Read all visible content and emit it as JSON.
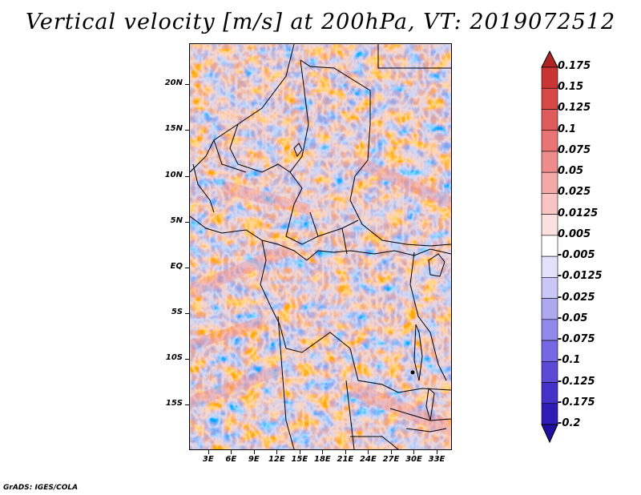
{
  "title": "Vertical velocity [m/s] at 200hPa, VT: 2019072512",
  "footer": "GrADS: IGES/COLA",
  "map": {
    "lat_labels": [
      "20N",
      "15N",
      "10N",
      "5N",
      "EQ",
      "5S",
      "10S",
      "15S"
    ],
    "lat_values": [
      20,
      15,
      10,
      5,
      0,
      -5,
      -10,
      -15
    ],
    "lon_labels": [
      "3E",
      "6E",
      "9E",
      "12E",
      "15E",
      "18E",
      "21E",
      "24E",
      "27E",
      "30E",
      "33E"
    ],
    "lon_values": [
      3,
      6,
      9,
      12,
      15,
      18,
      21,
      24,
      27,
      30,
      33
    ],
    "lon_range": [
      0.5,
      35
    ],
    "lat_range": [
      -20,
      24.5
    ]
  },
  "colorbar": {
    "levels": [
      "0.175",
      "0.15",
      "0.125",
      "0.1",
      "0.075",
      "0.05",
      "0.025",
      "0.0125",
      "0.005",
      "-0.005",
      "-0.0125",
      "-0.025",
      "-0.05",
      "-0.075",
      "-0.1",
      "-0.125",
      "-0.175",
      "-0.2"
    ],
    "colors": [
      "#b02424",
      "#c93434",
      "#d64848",
      "#e05c5c",
      "#e87474",
      "#ee8c8c",
      "#f4a8a8",
      "#f8c4c4",
      "#fbe0e0",
      "#ffffff",
      "#e4e2fb",
      "#cac6f6",
      "#aea8f0",
      "#9088ea",
      "#7668e2",
      "#5c4ad6",
      "#4432c8",
      "#2e1cb4",
      "#2010a0"
    ]
  }
}
